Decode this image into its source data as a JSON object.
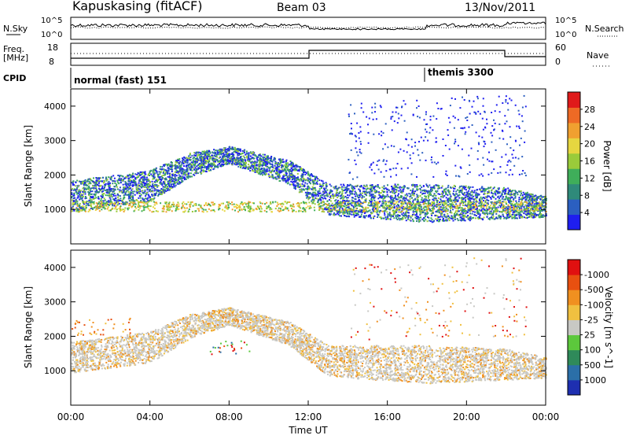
{
  "header": {
    "station": "Kapuskasing (fitACF)",
    "beam": "Beam 03",
    "date": "13/Nov/2011"
  },
  "summary_panels": {
    "nsky_label": "N.Sky",
    "nsky_ticks": [
      "10^5",
      "10^0"
    ],
    "nsearch_label": "N.Search",
    "nsearch_ticks": [
      "10^5",
      "10^0"
    ],
    "freq_label_line1": "Freq.",
    "freq_label_line2": "[MHz]",
    "freq_ticks": [
      "18",
      "8"
    ],
    "nave_label": "Nave",
    "nave_ticks": [
      "60",
      "0"
    ],
    "cpid_label": "CPID",
    "cpid_modes": [
      {
        "name": "normal (fast) 151",
        "start_hour": 0
      },
      {
        "name": "themis 3300",
        "start_hour": 18
      }
    ]
  },
  "chart_data": [
    {
      "type": "heatmap",
      "quantity": "Power",
      "colorbar_label": "Power [dB]",
      "ylabel": "Slant Range [km]",
      "ylim": [
        0,
        4500
      ],
      "yticks": [
        1000,
        2000,
        3000,
        4000
      ],
      "xlim": [
        0,
        24
      ],
      "colorbar_ticks": [
        "4",
        "8",
        "12",
        "16",
        "20",
        "24",
        "28"
      ],
      "colorbar_colors": [
        "#1e1ef0",
        "#2b5fc0",
        "#2f8a7a",
        "#3fae5a",
        "#9acb3a",
        "#e6d640",
        "#f0a030",
        "#ee6a25",
        "#e01a1a"
      ]
    },
    {
      "type": "heatmap",
      "quantity": "Velocity",
      "colorbar_label": "Velocity [m s^-1]",
      "ylabel": "Slant Range [km]",
      "ylim": [
        0,
        4500
      ],
      "yticks": [
        1000,
        2000,
        3000,
        4000
      ],
      "xlim": [
        0,
        24
      ],
      "colorbar_ticks": [
        "1000",
        "500",
        "100",
        "25",
        "-25",
        "-100",
        "-500",
        "-1000"
      ],
      "colorbar_colors": [
        "#1e2fb0",
        "#2b6fa8",
        "#2f8a5a",
        "#5cc83c",
        "#c8c8c4",
        "#f0c040",
        "#f09020",
        "#e85010",
        "#e01010"
      ]
    }
  ],
  "xaxis": {
    "ticks": [
      "00:00",
      "04:00",
      "08:00",
      "12:00",
      "16:00",
      "20:00",
      "00:00"
    ],
    "label": "Time UT"
  }
}
